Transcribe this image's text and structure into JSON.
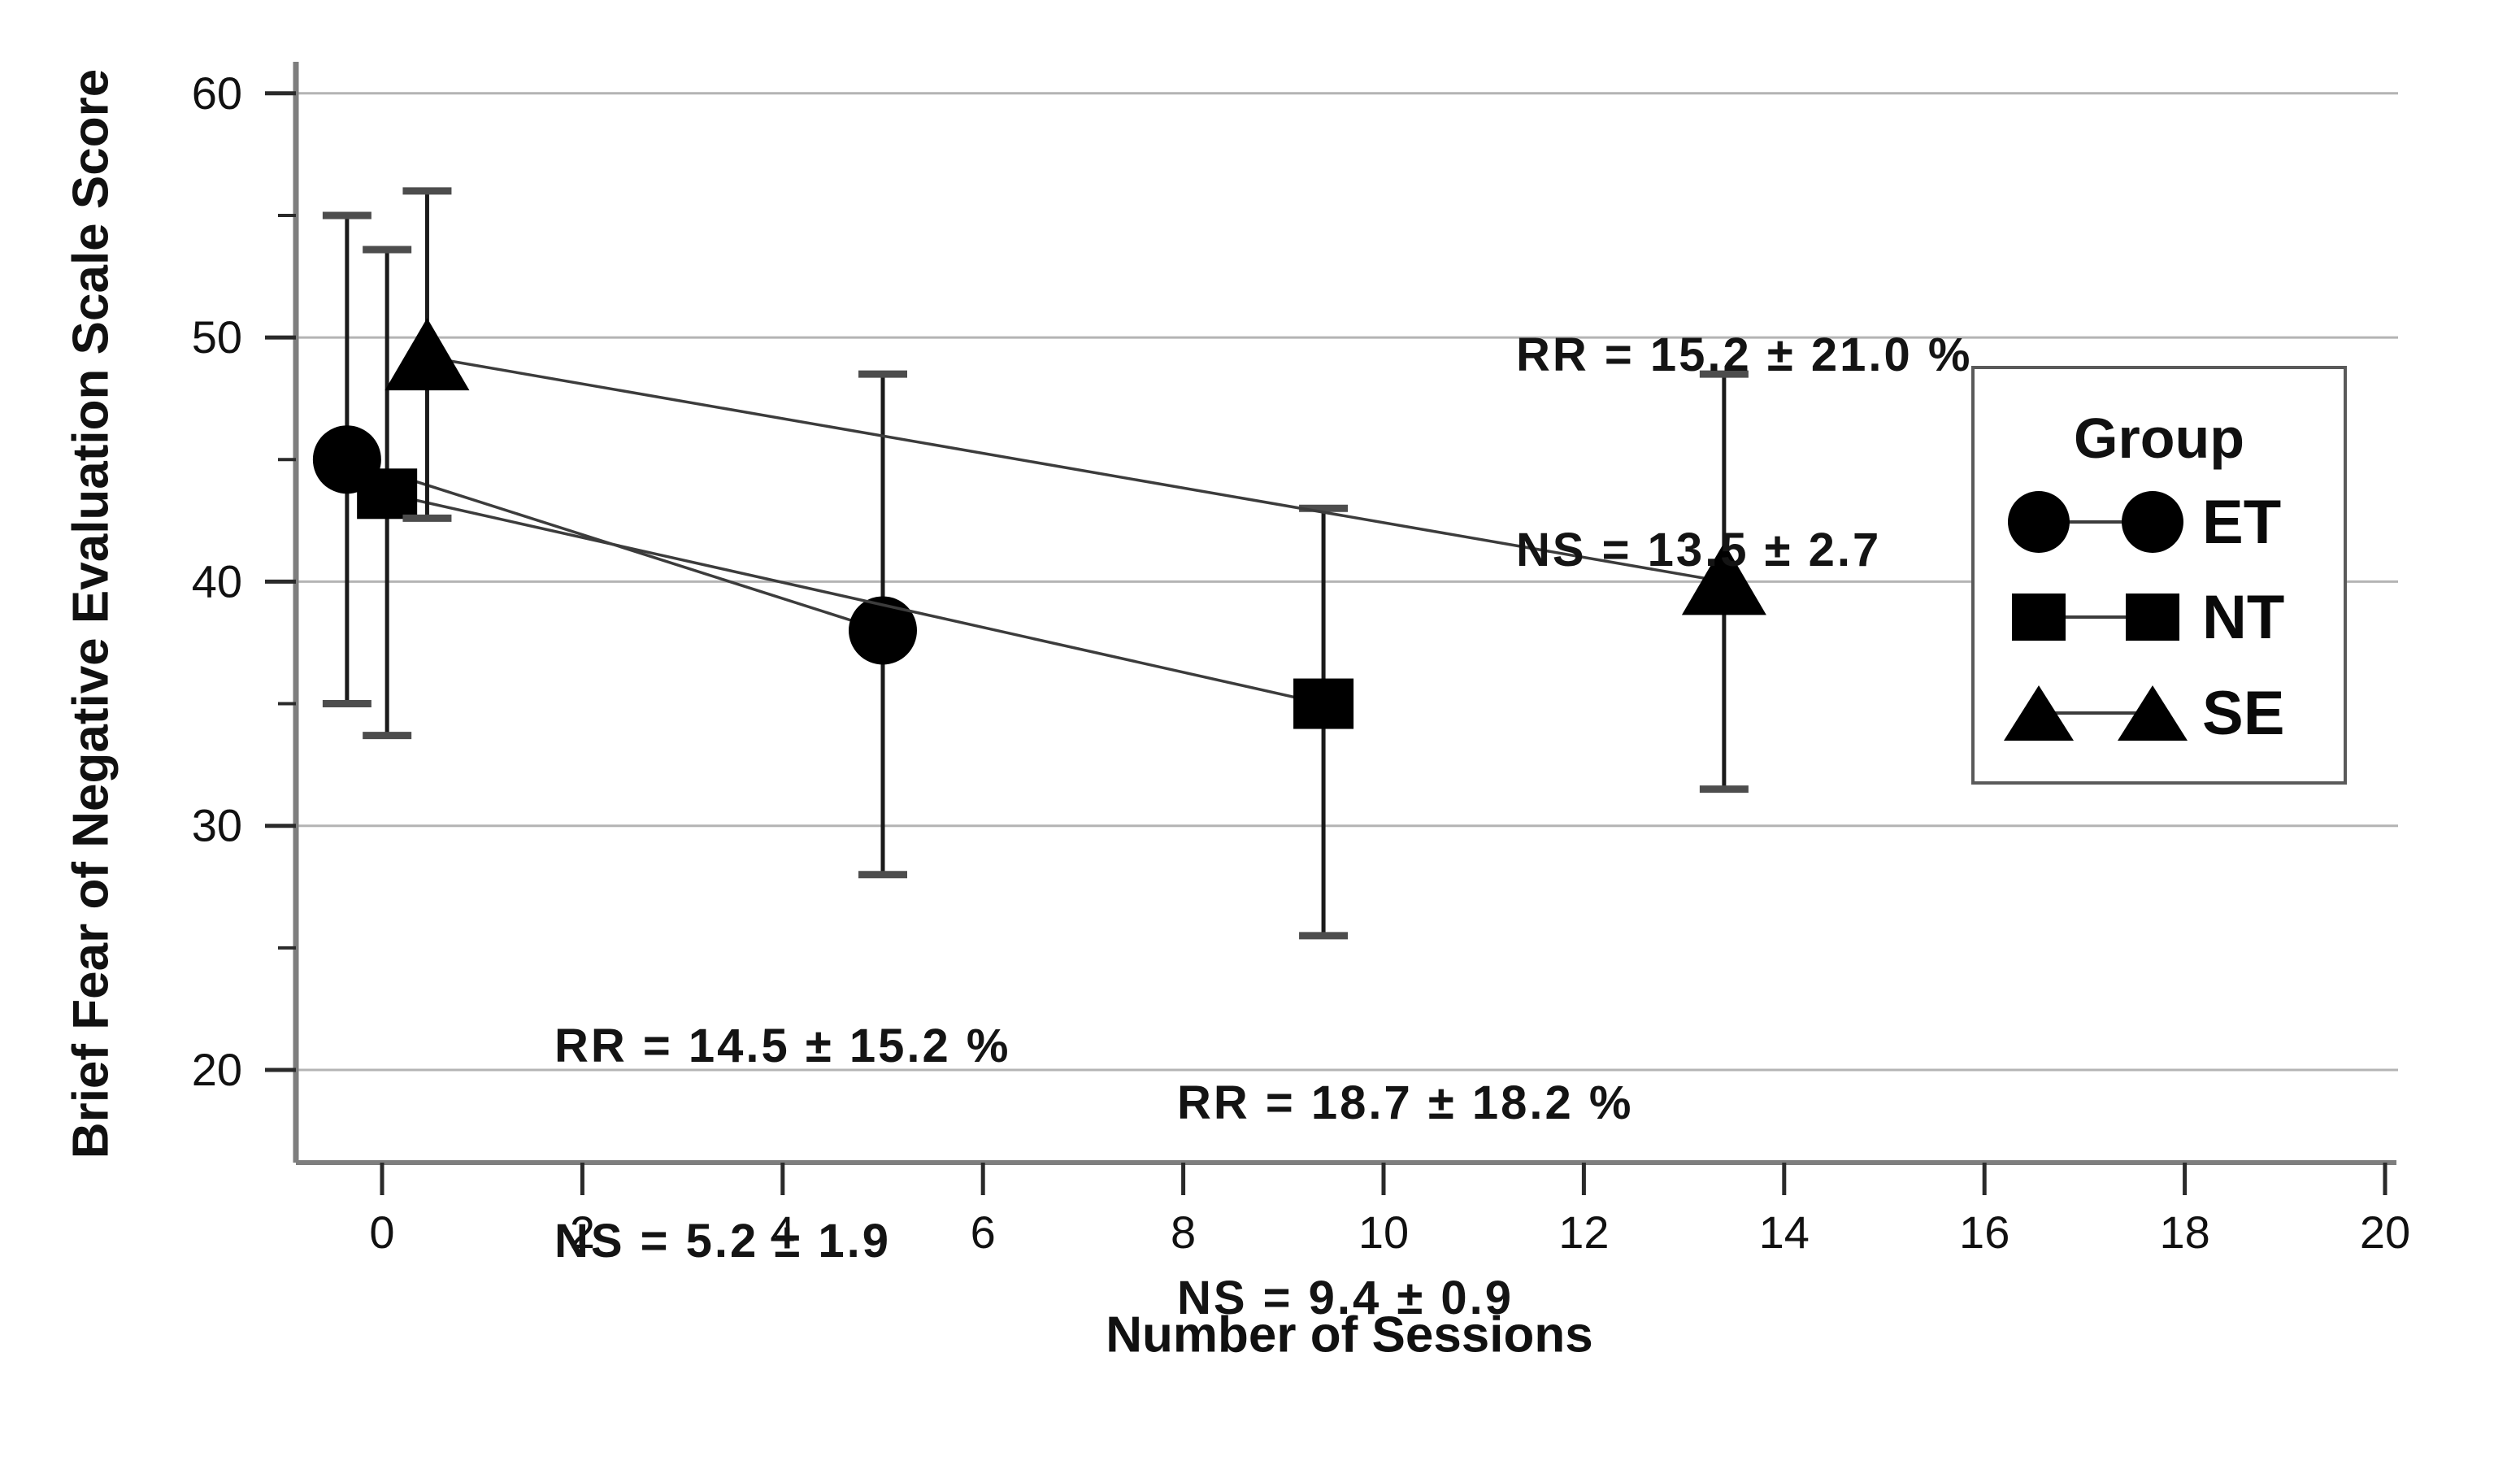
{
  "chart_data": {
    "type": "line",
    "title": "",
    "xlabel": "Number of Sessions",
    "ylabel": "Brief Fear of Negative Evaluation Scale Score",
    "x_ticks": [
      0,
      2,
      4,
      6,
      8,
      10,
      12,
      14,
      16,
      18,
      20
    ],
    "y_ticks": [
      20,
      30,
      40,
      50,
      60
    ],
    "y_minor_ticks": [
      25,
      35,
      45,
      55
    ],
    "xlim": [
      -0.9,
      20.2
    ],
    "ylim": [
      16,
      61.5
    ],
    "grid": "horizontal-major-only",
    "legend_position": "right-inside",
    "series": [
      {
        "name": "ET",
        "marker": "circle",
        "points": [
          {
            "x": -0.35,
            "y": 45.0,
            "err_low": 35.0,
            "err_high": 55.0
          },
          {
            "x": 5.0,
            "y": 38.0,
            "err_low": 28.0,
            "err_high": 48.5
          }
        ]
      },
      {
        "name": "NT",
        "marker": "square",
        "points": [
          {
            "x": 0.05,
            "y": 43.6,
            "err_low": 33.7,
            "err_high": 53.6
          },
          {
            "x": 9.4,
            "y": 35.0,
            "err_low": 25.5,
            "err_high": 43.0
          }
        ]
      },
      {
        "name": "SE",
        "marker": "triangle",
        "points": [
          {
            "x": 0.45,
            "y": 49.2,
            "err_low": 42.6,
            "err_high": 56.0
          },
          {
            "x": 13.4,
            "y": 40.0,
            "err_low": 31.5,
            "err_high": 48.5
          }
        ]
      }
    ],
    "annotations": [
      {
        "group": "SE",
        "lines": [
          "RR = 15.2 ± 21.0 %",
          "NS = 13.5 ± 2.7"
        ]
      },
      {
        "group": "ET",
        "lines": [
          "RR = 14.5 ± 15.2 %",
          "NS = 5.2 ± 1.9"
        ]
      },
      {
        "group": "NT",
        "lines": [
          "RR = 18.7 ± 18.2 %",
          "NS = 9.4 ± 0.9"
        ]
      }
    ]
  },
  "legend": {
    "title": "Group",
    "entries": [
      {
        "label": "ET",
        "marker": "circle"
      },
      {
        "label": "NT",
        "marker": "square"
      },
      {
        "label": "SE",
        "marker": "triangle"
      }
    ]
  },
  "colors": {
    "marker": "#000000",
    "grid": "#b4b4b4",
    "spine": "#7e7e7e",
    "tick": "#2a2a2a",
    "text": "#111111",
    "error_line": "#1a1a1a",
    "error_cap": "#4d4d4d",
    "series_line": "#3c3c3c",
    "legend_border": "#5a5a5a"
  }
}
